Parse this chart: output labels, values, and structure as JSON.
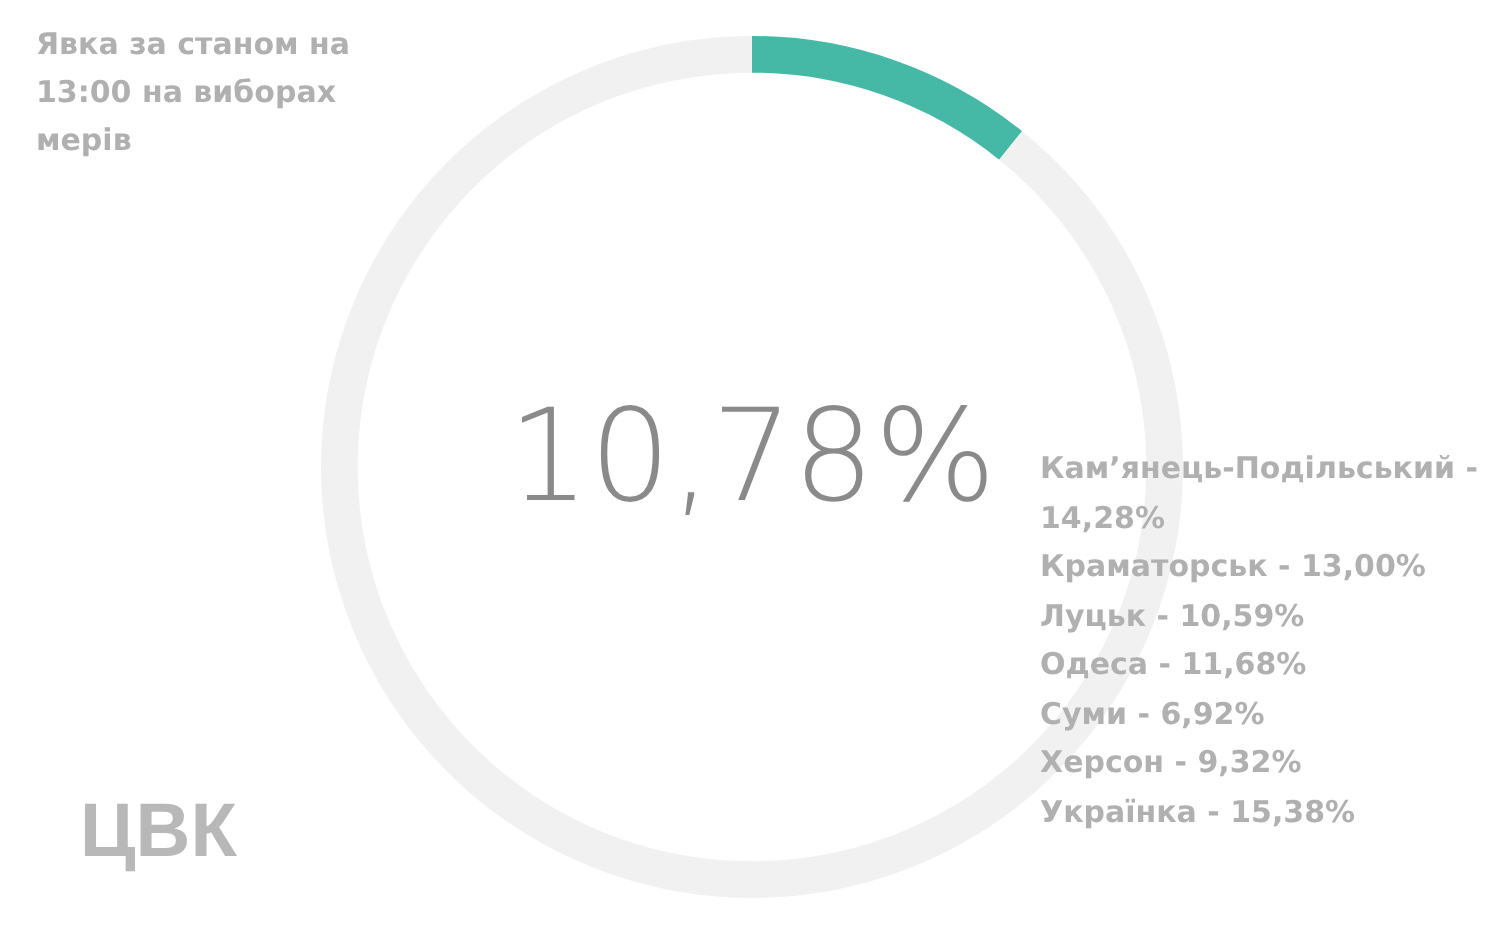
{
  "chart_data": {
    "type": "donut",
    "title": "Явка за станом на 13:00 на виборах мерів",
    "categories": [
      null,
      null
    ],
    "values": [
      10.78,
      89.22
    ],
    "colors": [
      "#45b9a6",
      "#f1f1f1"
    ],
    "value_labels": [
      "10,78%",
      null
    ],
    "annotations": [
      "Кам’янець-Подільський - 14,28%",
      "Краматорськ - 13,00%",
      "Луцьк - 10,59%",
      "Одеса - 11,68%",
      "Суми - 6,92%",
      "Херсон - 9,32%",
      "Українка - 15,38%",
      "ЦВК"
    ]
  }
}
